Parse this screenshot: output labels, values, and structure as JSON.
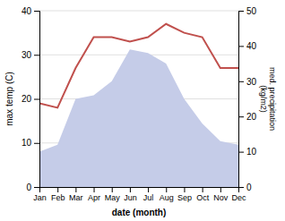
{
  "chart_data": {
    "type": "line",
    "x_label": "date (month)",
    "y_label": "max temp (C)",
    "y2_label": "med. precipitation\n(kg/m2)",
    "categories": [
      "Jan",
      "Feb",
      "Mar",
      "Apr",
      "May",
      "Jun",
      "Jul",
      "Aug",
      "Sep",
      "Oct",
      "Nov",
      "Dec"
    ],
    "series": [
      {
        "type": "area",
        "color": "#c5cce8",
        "axis": "y2",
        "values": [
          10,
          12,
          25,
          26,
          30,
          39,
          38,
          35,
          25,
          18,
          13,
          12
        ]
      },
      {
        "type": "line",
        "color": "#c0504d",
        "values": [
          19,
          18,
          27,
          34,
          34,
          33,
          34,
          37,
          35,
          34,
          27,
          27
        ]
      }
    ],
    "ylim": [
      0,
      40
    ],
    "yticks": [
      0,
      10,
      20,
      30,
      40
    ],
    "y2lim": [
      0,
      50
    ],
    "y2ticks": [
      0,
      10,
      20,
      30,
      40,
      50
    ],
    "grid": true
  }
}
